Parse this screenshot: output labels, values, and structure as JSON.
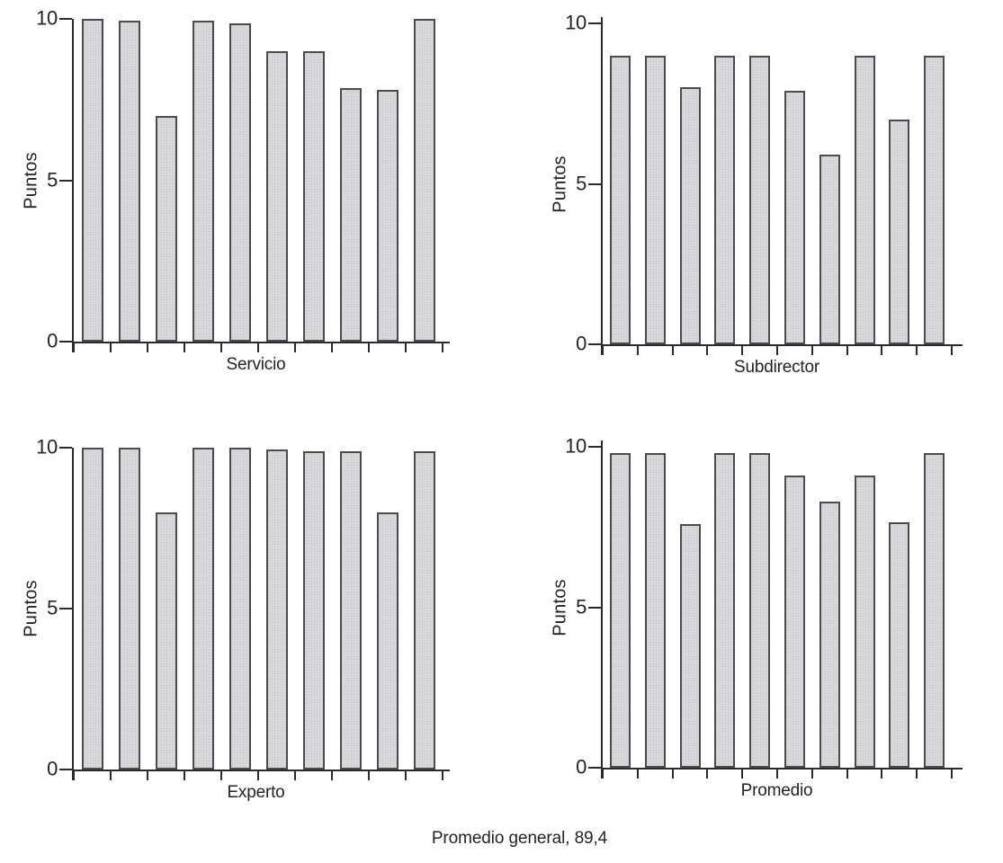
{
  "caption": "Promedio general, 89,4",
  "colors": {
    "background": "#ffffff",
    "text": "#262223",
    "axis_line": "#2b2b2b",
    "bar_fill": "#d9d9db",
    "bar_stipple": "#bdc2cf",
    "bar_border": "#4b4b4d"
  },
  "chart_data": [
    {
      "type": "bar",
      "panel": "top-left",
      "title": "",
      "xlabel": "Servicio",
      "ylabel": "Puntos",
      "ylim": [
        0,
        10
      ],
      "yticks": [
        0,
        5,
        10
      ],
      "grid": false,
      "legend": false,
      "values": [
        10,
        9.95,
        7,
        9.95,
        9.85,
        9,
        9,
        7.85,
        7.8,
        10
      ]
    },
    {
      "type": "bar",
      "panel": "top-right",
      "title": "",
      "xlabel": "Subdirector",
      "ylabel": "Puntos",
      "ylim": [
        0,
        10
      ],
      "yticks": [
        0,
        5,
        10
      ],
      "grid": false,
      "legend": false,
      "values": [
        9,
        9,
        8,
        9,
        9,
        7.9,
        5.9,
        9,
        7,
        9
      ]
    },
    {
      "type": "bar",
      "panel": "bottom-left",
      "title": "",
      "xlabel": "Experto",
      "ylabel": "Puntos",
      "ylim": [
        0,
        10
      ],
      "yticks": [
        0,
        5,
        10
      ],
      "grid": false,
      "legend": false,
      "values": [
        10,
        10,
        8,
        10,
        10,
        9.95,
        9.9,
        9.9,
        8,
        9.9
      ]
    },
    {
      "type": "bar",
      "panel": "bottom-right",
      "title": "",
      "xlabel": "Promedio",
      "ylabel": "Puntos",
      "ylim": [
        0,
        10
      ],
      "yticks": [
        0,
        5,
        10
      ],
      "grid": false,
      "legend": false,
      "values": [
        9.8,
        9.8,
        7.6,
        9.8,
        9.8,
        9.1,
        8.3,
        9.1,
        7.65,
        9.8
      ]
    }
  ]
}
